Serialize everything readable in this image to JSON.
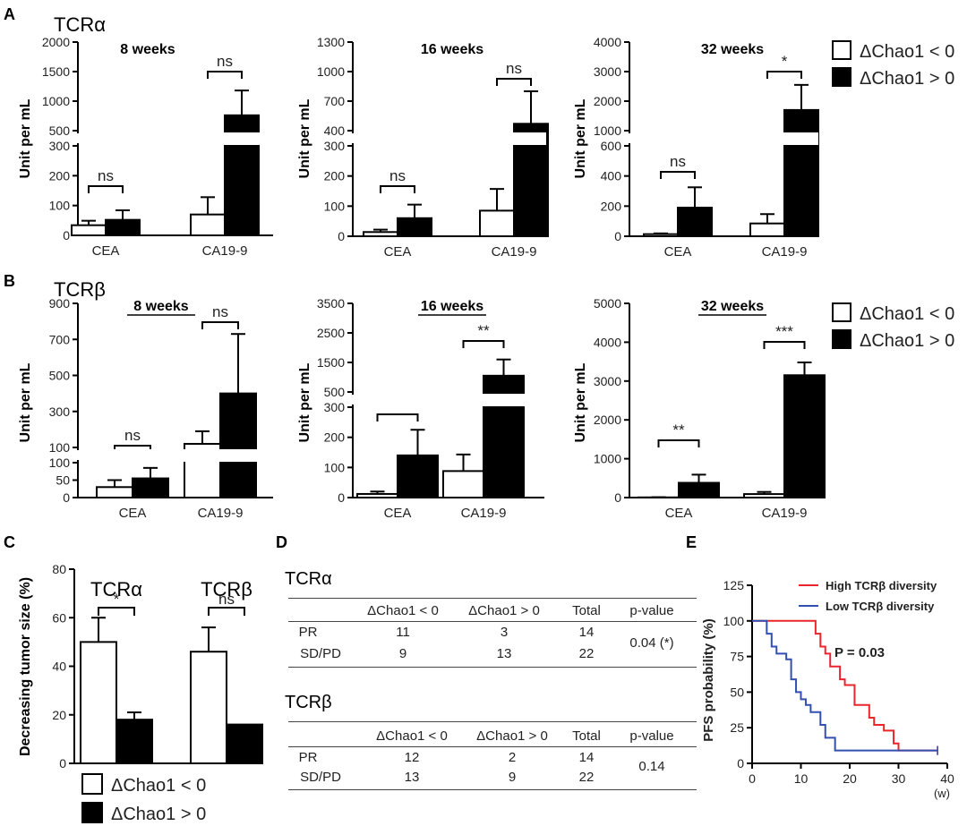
{
  "panel_letters": [
    "A",
    "B",
    "C",
    "D",
    "E"
  ],
  "legend": {
    "neg": "ΔChao1 < 0",
    "pos": "ΔChao1 > 0"
  },
  "colors": {
    "neg": "#ffffff",
    "pos": "#000000",
    "high": "#e8262b",
    "low": "#3350b0"
  },
  "chart_data": [
    {
      "id": "A1",
      "type": "bar",
      "panel": "A",
      "row_label": "TCRα",
      "title": "8 weeks",
      "title_underline": false,
      "ylabel": "Unit per mL",
      "categories": [
        "CEA",
        "CA19-9"
      ],
      "series": [
        {
          "name": "ΔChao1 < 0",
          "values": [
            34,
            70
          ],
          "errors": [
            15,
            58
          ]
        },
        {
          "name": "ΔChao1 > 0",
          "values": [
            52,
            760
          ],
          "errors": [
            32,
            420
          ]
        }
      ],
      "lower_ticks": [
        "0",
        "100",
        "200",
        "300"
      ],
      "upper_ticks": [
        "500",
        "1000",
        "1500",
        "2000"
      ],
      "sig": [
        "ns",
        "ns"
      ]
    },
    {
      "id": "A2",
      "type": "bar",
      "panel": "A",
      "title": "16 weeks",
      "title_underline": false,
      "ylabel": "Unit per mL",
      "categories": [
        "CEA",
        "CA19-9"
      ],
      "series": [
        {
          "name": "ΔChao1 < 0",
          "values": [
            14,
            85
          ],
          "errors": [
            8,
            72
          ]
        },
        {
          "name": "ΔChao1 > 0",
          "values": [
            60,
            470
          ],
          "errors": [
            45,
            330
          ]
        }
      ],
      "lower_ticks": [
        "0",
        "100",
        "200",
        "300"
      ],
      "upper_ticks": [
        "400",
        "700",
        "1000",
        "1300"
      ],
      "sig": [
        "ns",
        "ns"
      ]
    },
    {
      "id": "A3",
      "type": "bar",
      "panel": "A",
      "title": "32 weeks",
      "title_underline": false,
      "ylabel": "Unit per mL",
      "categories": [
        "CEA",
        "CA19-9"
      ],
      "series": [
        {
          "name": "ΔChao1 < 0",
          "values": [
            14,
            85
          ],
          "errors": [
            5,
            62
          ]
        },
        {
          "name": "ΔChao1 > 0",
          "values": [
            190,
            1700
          ],
          "errors": [
            135,
            850
          ]
        }
      ],
      "lower_ticks": [
        "0",
        "200",
        "400",
        "600"
      ],
      "upper_ticks": [
        "1000",
        "2000",
        "3000",
        "4000"
      ],
      "sig": [
        "ns",
        "*"
      ]
    },
    {
      "id": "B1",
      "type": "bar",
      "panel": "B",
      "row_label": "TCRβ",
      "title": "8 weeks",
      "title_underline": true,
      "ylabel": "Unit per mL",
      "categories": [
        "CEA",
        "CA19-9"
      ],
      "series": [
        {
          "name": "ΔChao1 < 0",
          "values": [
            30,
            120
          ],
          "errors": [
            20,
            70
          ]
        },
        {
          "name": "ΔChao1 > 0",
          "values": [
            55,
            400
          ],
          "errors": [
            30,
            330
          ]
        }
      ],
      "lower_ticks": [
        "0",
        "50",
        "100"
      ],
      "upper_ticks": [
        "100",
        "300",
        "500",
        "700",
        "900"
      ],
      "sig": [
        "ns",
        "ns"
      ]
    },
    {
      "id": "B2",
      "type": "bar",
      "panel": "B",
      "title": "16 weeks",
      "title_underline": true,
      "ylabel": "Unit per mL",
      "categories": [
        "CEA",
        "CA19-9"
      ],
      "series": [
        {
          "name": "ΔChao1 < 0",
          "values": [
            12,
            88
          ],
          "errors": [
            8,
            55
          ]
        },
        {
          "name": "ΔChao1 > 0",
          "values": [
            140,
            1050
          ],
          "errors": [
            85,
            550
          ]
        }
      ],
      "lower_ticks": [
        "0",
        "100",
        "200",
        "300"
      ],
      "upper_ticks": [
        "500",
        "1500",
        "2500",
        "3500"
      ],
      "sig": [
        "**",
        "**"
      ]
    },
    {
      "id": "B3",
      "type": "bar",
      "panel": "B",
      "title": "32 weeks",
      "title_underline": true,
      "ylabel": "Unit per mL",
      "categories": [
        "CEA",
        "CA19-9"
      ],
      "series": [
        {
          "name": "ΔChao1 < 0",
          "values": [
            5,
            90
          ],
          "errors": [
            5,
            55
          ]
        },
        {
          "name": "ΔChao1 > 0",
          "values": [
            380,
            3150
          ],
          "errors": [
            210,
            330
          ]
        }
      ],
      "ticks": [
        "0",
        "1000",
        "2000",
        "3000",
        "4000",
        "5000"
      ],
      "ylim": [
        0,
        5000
      ],
      "sig": [
        "**",
        "***"
      ]
    },
    {
      "id": "C",
      "type": "bar",
      "panel": "C",
      "ylabel": "Decreasing tumor size (%)",
      "ylim": [
        0,
        80
      ],
      "ticks": [
        "0",
        "20",
        "40",
        "60",
        "80"
      ],
      "categories": [
        "TCRα",
        "TCRβ"
      ],
      "series": [
        {
          "name": "ΔChao1 < 0",
          "values": [
            50,
            46
          ],
          "errors": [
            10,
            10
          ]
        },
        {
          "name": "ΔChao1 > 0",
          "values": [
            18,
            16
          ],
          "errors": [
            3,
            0
          ]
        }
      ],
      "sig": [
        "*",
        "ns"
      ]
    },
    {
      "id": "E",
      "type": "line",
      "panel": "E",
      "ylabel": "PFS probability (%)",
      "xlabel": "(w)",
      "xlim": [
        0,
        40
      ],
      "ylim": [
        0,
        125
      ],
      "xticks": [
        "0",
        "10",
        "20",
        "30",
        "40"
      ],
      "yticks": [
        "0",
        "25",
        "50",
        "75",
        "100",
        "125"
      ],
      "annotation": "P = 0.03",
      "series": [
        {
          "name": "High TCRβ diversity",
          "x": [
            0,
            6,
            13,
            14,
            15,
            16,
            18,
            19,
            21,
            24,
            25,
            27,
            29,
            30,
            38
          ],
          "y": [
            100,
            100,
            91,
            82,
            77,
            68,
            59,
            55,
            41,
            32,
            27,
            23,
            14,
            9,
            9
          ]
        },
        {
          "name": "Low TCRβ diversity",
          "x": [
            0,
            3,
            4,
            5,
            7,
            8,
            9,
            10,
            11,
            12,
            14,
            15,
            17,
            38
          ],
          "y": [
            100,
            91,
            82,
            77,
            73,
            59,
            50,
            45,
            41,
            36,
            27,
            18,
            9,
            9
          ]
        }
      ]
    }
  ],
  "tables": {
    "headers": [
      "ΔChao1 < 0",
      "ΔChao1 > 0",
      "Total",
      "p-value"
    ],
    "alpha": {
      "title": "TCRα",
      "rows": [
        {
          "label": "PR",
          "neg": "11",
          "pos": "3",
          "total": "14"
        },
        {
          "label": "SD/PD",
          "neg": "9",
          "pos": "13",
          "total": "22"
        }
      ],
      "p": "0.04 (*)"
    },
    "beta": {
      "title": "TCRβ",
      "rows": [
        {
          "label": "PR",
          "neg": "12",
          "pos": "2",
          "total": "14"
        },
        {
          "label": "SD/PD",
          "neg": "13",
          "pos": "9",
          "total": "22"
        }
      ],
      "p": "0.14"
    }
  }
}
